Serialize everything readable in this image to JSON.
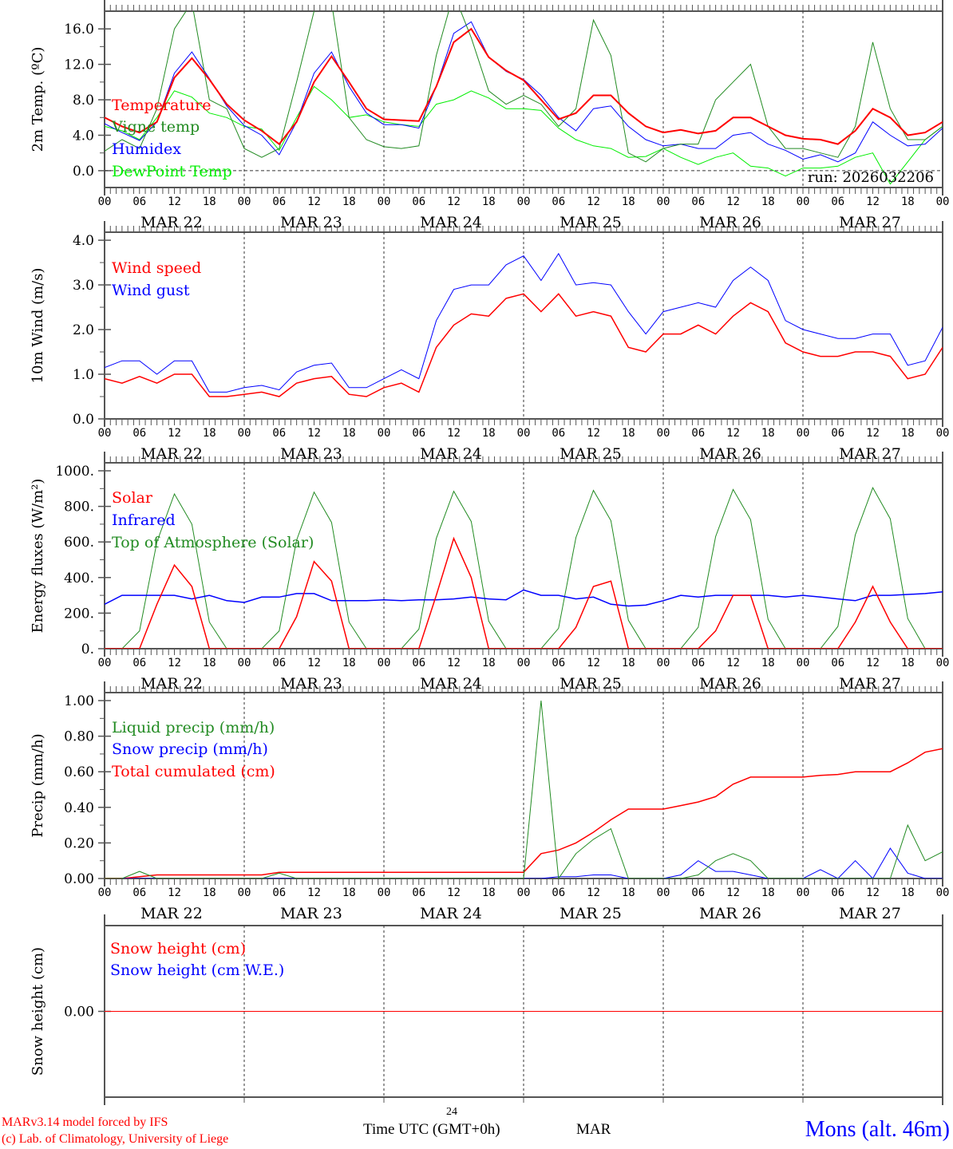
{
  "chart_data": [
    {
      "type": "line",
      "id": "temp",
      "ylabel": "2m Temp. (ºC)",
      "ylim": [
        -1.9,
        18.0
      ],
      "yticks": [
        0,
        4,
        8,
        12,
        16
      ],
      "ytick_labels": [
        "0.0",
        "4.0",
        "8.0",
        "12.0",
        "16.0"
      ],
      "zero_line": true,
      "annotation": "run: 2026032206",
      "series": [
        {
          "name": "Temperature",
          "color": "#ff0000",
          "width": 2,
          "values": [
            6.0,
            5.0,
            4.3,
            5.5,
            10.5,
            12.7,
            10.3,
            7.5,
            5.7,
            4.5,
            3.0,
            5.5,
            10.0,
            12.9,
            10.0,
            7.0,
            5.8,
            5.7,
            5.6,
            9.5,
            14.5,
            16.0,
            12.8,
            11.3,
            10.2,
            8.0,
            5.8,
            6.5,
            8.5,
            8.5,
            6.5,
            5.0,
            4.3,
            4.6,
            4.2,
            4.5,
            6.0,
            6.0,
            5.0,
            4.0,
            3.6,
            3.5,
            3.0,
            4.5,
            7.0,
            6.0,
            4.0,
            4.3,
            5.5
          ]
        },
        {
          "name": "Vigne temp",
          "color": "#228b22",
          "width": 1,
          "values": [
            2.2,
            3.5,
            2.5,
            7.0,
            16.0,
            19.0,
            8.0,
            7.0,
            2.5,
            1.5,
            2.5,
            10.0,
            18.0,
            19.0,
            6.0,
            3.5,
            2.7,
            2.5,
            2.8,
            13.0,
            20.0,
            15.0,
            9.0,
            7.5,
            8.5,
            7.5,
            5.0,
            7.0,
            17.0,
            13.0,
            2.0,
            1.0,
            2.5,
            3.0,
            3.0,
            8.0,
            10.0,
            12.0,
            5.0,
            2.5,
            2.5,
            2.0,
            1.5,
            5.0,
            14.5,
            7.0,
            3.5,
            3.5,
            5.0
          ]
        },
        {
          "name": "Humidex",
          "color": "#0000ff",
          "width": 1,
          "values": [
            5.3,
            4.3,
            3.4,
            5.5,
            11.0,
            13.4,
            10.4,
            7.3,
            5.1,
            4.0,
            1.8,
            5.5,
            11.0,
            13.4,
            9.5,
            6.5,
            5.2,
            5.2,
            4.8,
            9.5,
            15.5,
            16.8,
            12.8,
            11.2,
            10.3,
            8.5,
            6.0,
            4.5,
            7.0,
            7.3,
            5.0,
            3.5,
            2.8,
            3.0,
            2.5,
            2.5,
            4.0,
            4.3,
            3.0,
            2.3,
            1.3,
            1.8,
            1.0,
            2.0,
            5.5,
            4.0,
            2.8,
            3.0,
            4.8
          ]
        },
        {
          "name": "DewPoint Temp",
          "color": "#00ee00",
          "width": 1,
          "values": [
            5.0,
            4.5,
            3.5,
            6.0,
            9.0,
            8.3,
            6.5,
            6.0,
            5.0,
            4.7,
            2.3,
            6.0,
            9.5,
            8.0,
            6.0,
            6.3,
            5.5,
            5.2,
            5.0,
            7.5,
            8.0,
            9.0,
            8.2,
            7.0,
            7.0,
            6.8,
            4.8,
            3.5,
            2.8,
            2.5,
            1.5,
            1.6,
            2.5,
            1.5,
            0.7,
            1.5,
            2.0,
            0.5,
            0.3,
            -0.6,
            0.3,
            0.3,
            0.5,
            1.5,
            2.0,
            -1.5,
            1.0,
            3.5,
            5.0
          ]
        }
      ]
    },
    {
      "type": "line",
      "id": "wind",
      "ylabel": "10m Wind (m/s)",
      "ylim": [
        0,
        4.18
      ],
      "yticks": [
        0,
        1,
        2,
        3,
        4
      ],
      "ytick_labels": [
        "0.0",
        "1.0",
        "2.0",
        "3.0",
        "4.0"
      ],
      "series": [
        {
          "name": "Wind speed",
          "color": "#ff0000",
          "width": 1.5,
          "values": [
            0.9,
            0.8,
            0.95,
            0.8,
            1.0,
            1.0,
            0.5,
            0.5,
            0.55,
            0.6,
            0.5,
            0.8,
            0.9,
            0.95,
            0.55,
            0.5,
            0.7,
            0.8,
            0.6,
            1.6,
            2.1,
            2.35,
            2.3,
            2.7,
            2.8,
            2.4,
            2.8,
            2.3,
            2.4,
            2.3,
            1.6,
            1.5,
            1.9,
            1.9,
            2.1,
            1.9,
            2.3,
            2.6,
            2.4,
            1.7,
            1.5,
            1.4,
            1.4,
            1.5,
            1.5,
            1.4,
            0.9,
            1.0,
            1.6
          ]
        },
        {
          "name": "Wind gust",
          "color": "#0000ff",
          "width": 1,
          "values": [
            1.15,
            1.3,
            1.3,
            1.0,
            1.3,
            1.3,
            0.6,
            0.6,
            0.7,
            0.75,
            0.65,
            1.05,
            1.2,
            1.25,
            0.7,
            0.7,
            0.9,
            1.1,
            0.9,
            2.2,
            2.9,
            3.0,
            3.0,
            3.45,
            3.65,
            3.1,
            3.7,
            3.0,
            3.05,
            3.0,
            2.4,
            1.9,
            2.4,
            2.5,
            2.6,
            2.5,
            3.1,
            3.4,
            3.1,
            2.2,
            2.0,
            1.9,
            1.8,
            1.8,
            1.9,
            1.9,
            1.2,
            1.3,
            2.05
          ]
        }
      ]
    },
    {
      "type": "line",
      "id": "energy",
      "ylabel": "Energy fluxes (W/m²)",
      "ylim": [
        0,
        1045
      ],
      "yticks": [
        0,
        200,
        400,
        600,
        800,
        1000
      ],
      "ytick_labels": [
        "0.",
        "200.",
        "400.",
        "600.",
        "800.",
        "1000."
      ],
      "series": [
        {
          "name": "Solar",
          "color": "#ff0000",
          "width": 1.5,
          "values": [
            0,
            0,
            0,
            250,
            470,
            350,
            0,
            0,
            0,
            0,
            0,
            180,
            490,
            380,
            0,
            0,
            0,
            0,
            0,
            300,
            620,
            400,
            0,
            0,
            0,
            0,
            0,
            120,
            350,
            380,
            0,
            0,
            0,
            0,
            0,
            100,
            300,
            300,
            0,
            0,
            0,
            0,
            0,
            150,
            350,
            150,
            0,
            0,
            0
          ]
        },
        {
          "name": "Infrared",
          "color": "#0000ff",
          "width": 1.5,
          "values": [
            250,
            300,
            300,
            300,
            300,
            280,
            300,
            270,
            260,
            290,
            290,
            310,
            310,
            270,
            270,
            270,
            275,
            270,
            275,
            275,
            280,
            290,
            280,
            275,
            330,
            300,
            300,
            280,
            290,
            250,
            240,
            245,
            270,
            300,
            290,
            300,
            300,
            300,
            300,
            290,
            300,
            290,
            280,
            270,
            300,
            300,
            305,
            310,
            320
          ]
        },
        {
          "name": "Top of Atmosphere (Solar)",
          "color": "#228b22",
          "width": 1,
          "values": [
            0,
            0,
            100,
            600,
            870,
            700,
            150,
            0,
            0,
            0,
            100,
            610,
            880,
            710,
            150,
            0,
            0,
            0,
            110,
            620,
            885,
            715,
            155,
            0,
            0,
            0,
            115,
            625,
            890,
            720,
            160,
            0,
            0,
            0,
            120,
            630,
            895,
            725,
            165,
            0,
            0,
            0,
            125,
            640,
            905,
            730,
            170,
            0,
            0
          ]
        }
      ]
    },
    {
      "type": "line",
      "id": "precip",
      "ylabel": "Precip (mm/h)",
      "ylim": [
        0,
        1.045
      ],
      "yticks": [
        0,
        0.2,
        0.4,
        0.6,
        0.8,
        1.0
      ],
      "ytick_labels": [
        "0.00",
        "0.20",
        "0.40",
        "0.60",
        "0.80",
        "1.00"
      ],
      "series": [
        {
          "name": "Liquid precip (mm/h)",
          "color": "#228b22",
          "width": 1,
          "values": [
            0,
            0,
            0.04,
            0,
            0,
            0,
            0,
            0,
            0,
            0,
            0.03,
            0,
            0,
            0,
            0,
            0,
            0,
            0,
            0,
            0,
            0,
            0,
            0,
            0,
            0,
            1.0,
            0,
            0.14,
            0.22,
            0.28,
            0,
            0,
            0,
            0,
            0.02,
            0.1,
            0.14,
            0.1,
            0,
            0,
            0,
            0,
            0,
            0,
            0,
            0,
            0.3,
            0.1,
            0.15
          ]
        },
        {
          "name": "Snow precip (mm/h)",
          "color": "#0000ff",
          "width": 1,
          "values": [
            0,
            0,
            0,
            0,
            0,
            0,
            0,
            0,
            0,
            0,
            0,
            0,
            0,
            0,
            0,
            0,
            0,
            0,
            0,
            0,
            0,
            0,
            0,
            0,
            0,
            0,
            0.01,
            0.01,
            0.02,
            0.02,
            0,
            0,
            0,
            0.02,
            0.1,
            0.04,
            0.04,
            0.02,
            0,
            0,
            0,
            0.05,
            0,
            0.1,
            0,
            0.17,
            0.03,
            0,
            0
          ]
        },
        {
          "name": "Total cumulated (cm)",
          "color": "#ff0000",
          "width": 1.5,
          "values": [
            0,
            0,
            0.01,
            0.02,
            0.02,
            0.02,
            0.02,
            0.02,
            0.02,
            0.02,
            0.035,
            0.035,
            0.035,
            0.035,
            0.035,
            0.035,
            0.035,
            0.035,
            0.035,
            0.035,
            0.035,
            0.035,
            0.035,
            0.035,
            0.035,
            0.14,
            0.16,
            0.2,
            0.26,
            0.33,
            0.39,
            0.39,
            0.39,
            0.41,
            0.43,
            0.46,
            0.53,
            0.57,
            0.57,
            0.57,
            0.57,
            0.58,
            0.585,
            0.6,
            0.6,
            0.6,
            0.65,
            0.71,
            0.73
          ]
        }
      ]
    },
    {
      "type": "line",
      "id": "snow",
      "ylabel": "Snow height (cm)",
      "ylim": [
        -1,
        1
      ],
      "yticks": [
        0
      ],
      "ytick_labels": [
        "0.00"
      ],
      "series": [
        {
          "name": "Snow height (cm)",
          "color": "#ff0000",
          "width": 1,
          "values": [
            0,
            0,
            0,
            0,
            0,
            0,
            0,
            0,
            0,
            0,
            0,
            0,
            0,
            0,
            0,
            0,
            0,
            0,
            0,
            0,
            0,
            0,
            0,
            0,
            0,
            0,
            0,
            0,
            0,
            0,
            0,
            0,
            0,
            0,
            0,
            0,
            0,
            0,
            0,
            0,
            0,
            0,
            0,
            0,
            0,
            0,
            0,
            0,
            0
          ]
        },
        {
          "name": "Snow height (cm W.E.)",
          "color": "#0000ff",
          "width": 1,
          "hidden_under": true,
          "values": [
            0,
            0,
            0,
            0,
            0,
            0,
            0,
            0,
            0,
            0,
            0,
            0,
            0,
            0,
            0,
            0,
            0,
            0,
            0,
            0,
            0,
            0,
            0,
            0,
            0,
            0,
            0,
            0,
            0,
            0,
            0,
            0,
            0,
            0,
            0,
            0,
            0,
            0,
            0,
            0,
            0,
            0,
            0,
            0,
            0,
            0,
            0,
            0,
            0
          ]
        }
      ]
    }
  ],
  "x_axis": {
    "step_hours": 3,
    "hour_labels": [
      "00",
      "06",
      "12",
      "18"
    ],
    "final_hour_label": "00",
    "dates": [
      "MAR 22",
      "MAR 23",
      "MAR 24",
      "MAR 25",
      "MAR 26",
      "MAR 27"
    ]
  },
  "footer": {
    "credit_line1": "MARv3.14 model forced by IFS",
    "credit_line2": "(c) Lab. of Climatology, University of Liege",
    "day_number": "24",
    "xlabel": "Time UTC (GMT+0h)",
    "month": "MAR",
    "station": "Mons (alt. 46m)"
  }
}
